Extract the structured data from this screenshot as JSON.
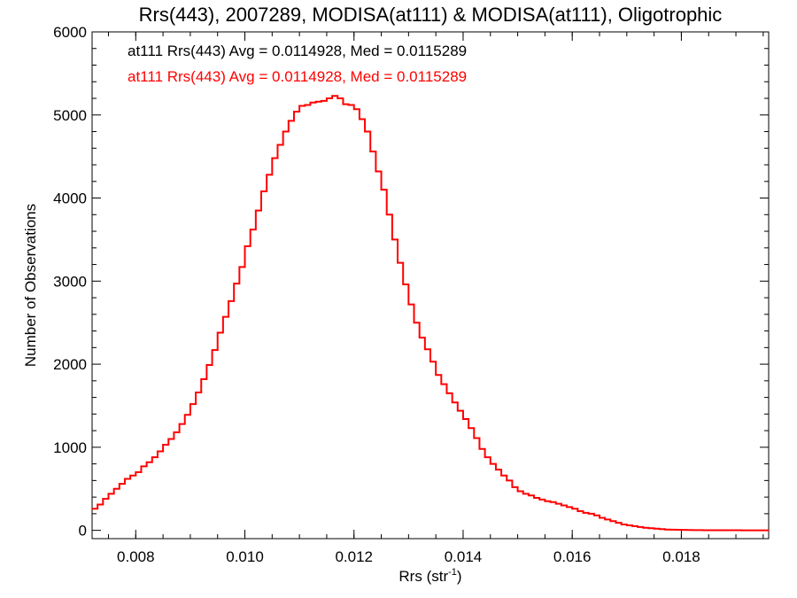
{
  "chart_data": {
    "type": "line",
    "style": "step histogram",
    "title": "Rrs(443), 2007289, MODISA(at111) & MODISA(at111), Oligotrophic",
    "xlabel": "Rrs (str",
    "xlabel_sup": "-1",
    "xlabel_close": ")",
    "ylabel": "Number of Observations",
    "xlim": [
      0.0072,
      0.0196
    ],
    "ylim": [
      -100,
      6000
    ],
    "x_ticks": [
      0.008,
      0.01,
      0.012,
      0.014,
      0.016,
      0.018
    ],
    "x_tick_labels": [
      "0.008",
      "0.010",
      "0.012",
      "0.014",
      "0.016",
      "0.018"
    ],
    "y_ticks": [
      0,
      1000,
      2000,
      3000,
      4000,
      5000,
      6000
    ],
    "y_tick_labels": [
      "0",
      "1000",
      "2000",
      "3000",
      "4000",
      "5000",
      "6000"
    ],
    "grid": false,
    "annotations": [
      {
        "text": "at111 Rrs(443) Avg = 0.0114928, Med = 0.0115289",
        "color": "#000000"
      },
      {
        "text": "at111 Rrs(443) Avg = 0.0114928, Med = 0.0115289",
        "color": "#ff0000"
      }
    ],
    "series": [
      {
        "color": "#ff0000",
        "bin_width": 0.0001,
        "x": [
          0.0072,
          0.0073,
          0.0074,
          0.0075,
          0.0076,
          0.0077,
          0.0078,
          0.0079,
          0.008,
          0.0081,
          0.0082,
          0.0083,
          0.0084,
          0.0085,
          0.0086,
          0.0087,
          0.0088,
          0.0089,
          0.009,
          0.0091,
          0.0092,
          0.0093,
          0.0094,
          0.0095,
          0.0096,
          0.0097,
          0.0098,
          0.0099,
          0.01,
          0.0101,
          0.0102,
          0.0103,
          0.0104,
          0.0105,
          0.0106,
          0.0107,
          0.0108,
          0.0109,
          0.011,
          0.0111,
          0.0112,
          0.0113,
          0.0114,
          0.0115,
          0.0116,
          0.0117,
          0.0118,
          0.0119,
          0.012,
          0.0121,
          0.0122,
          0.0123,
          0.0124,
          0.0125,
          0.0126,
          0.0127,
          0.0128,
          0.0129,
          0.013,
          0.0131,
          0.0132,
          0.0133,
          0.0134,
          0.0135,
          0.0136,
          0.0137,
          0.0138,
          0.0139,
          0.014,
          0.0141,
          0.0142,
          0.0143,
          0.0144,
          0.0145,
          0.0146,
          0.0147,
          0.0148,
          0.0149,
          0.015,
          0.0151,
          0.0152,
          0.0153,
          0.0154,
          0.0155,
          0.0156,
          0.0157,
          0.0158,
          0.0159,
          0.016,
          0.0161,
          0.0162,
          0.0163,
          0.0164,
          0.0165,
          0.0166,
          0.0167,
          0.0168,
          0.0169,
          0.017,
          0.0171,
          0.0172,
          0.0173,
          0.0174,
          0.0175,
          0.0176,
          0.0177,
          0.0178,
          0.0179,
          0.018,
          0.0181,
          0.0182,
          0.0183,
          0.0184,
          0.0185,
          0.0186,
          0.0187,
          0.0188,
          0.0189,
          0.019,
          0.0191,
          0.0192,
          0.0193,
          0.0194,
          0.0195
        ],
        "values": [
          260,
          310,
          380,
          440,
          500,
          560,
          620,
          660,
          700,
          770,
          820,
          880,
          950,
          1030,
          1100,
          1180,
          1280,
          1390,
          1520,
          1660,
          1820,
          1990,
          2170,
          2380,
          2570,
          2760,
          2970,
          3170,
          3420,
          3620,
          3850,
          4080,
          4280,
          4480,
          4640,
          4800,
          4930,
          5040,
          5110,
          5120,
          5150,
          5160,
          5170,
          5200,
          5230,
          5200,
          5130,
          5120,
          5070,
          4950,
          4800,
          4560,
          4320,
          4100,
          3800,
          3500,
          3220,
          2960,
          2720,
          2500,
          2320,
          2180,
          2030,
          1870,
          1760,
          1650,
          1540,
          1440,
          1340,
          1230,
          1110,
          980,
          880,
          800,
          730,
          660,
          600,
          520,
          470,
          440,
          420,
          390,
          370,
          350,
          340,
          320,
          300,
          280,
          260,
          230,
          210,
          200,
          180,
          150,
          130,
          110,
          90,
          70,
          60,
          50,
          40,
          30,
          25,
          20,
          15,
          10,
          8,
          6,
          5,
          4,
          3,
          3,
          2,
          2,
          1,
          1,
          1,
          1,
          1,
          0,
          0,
          0,
          0,
          0
        ]
      }
    ]
  }
}
